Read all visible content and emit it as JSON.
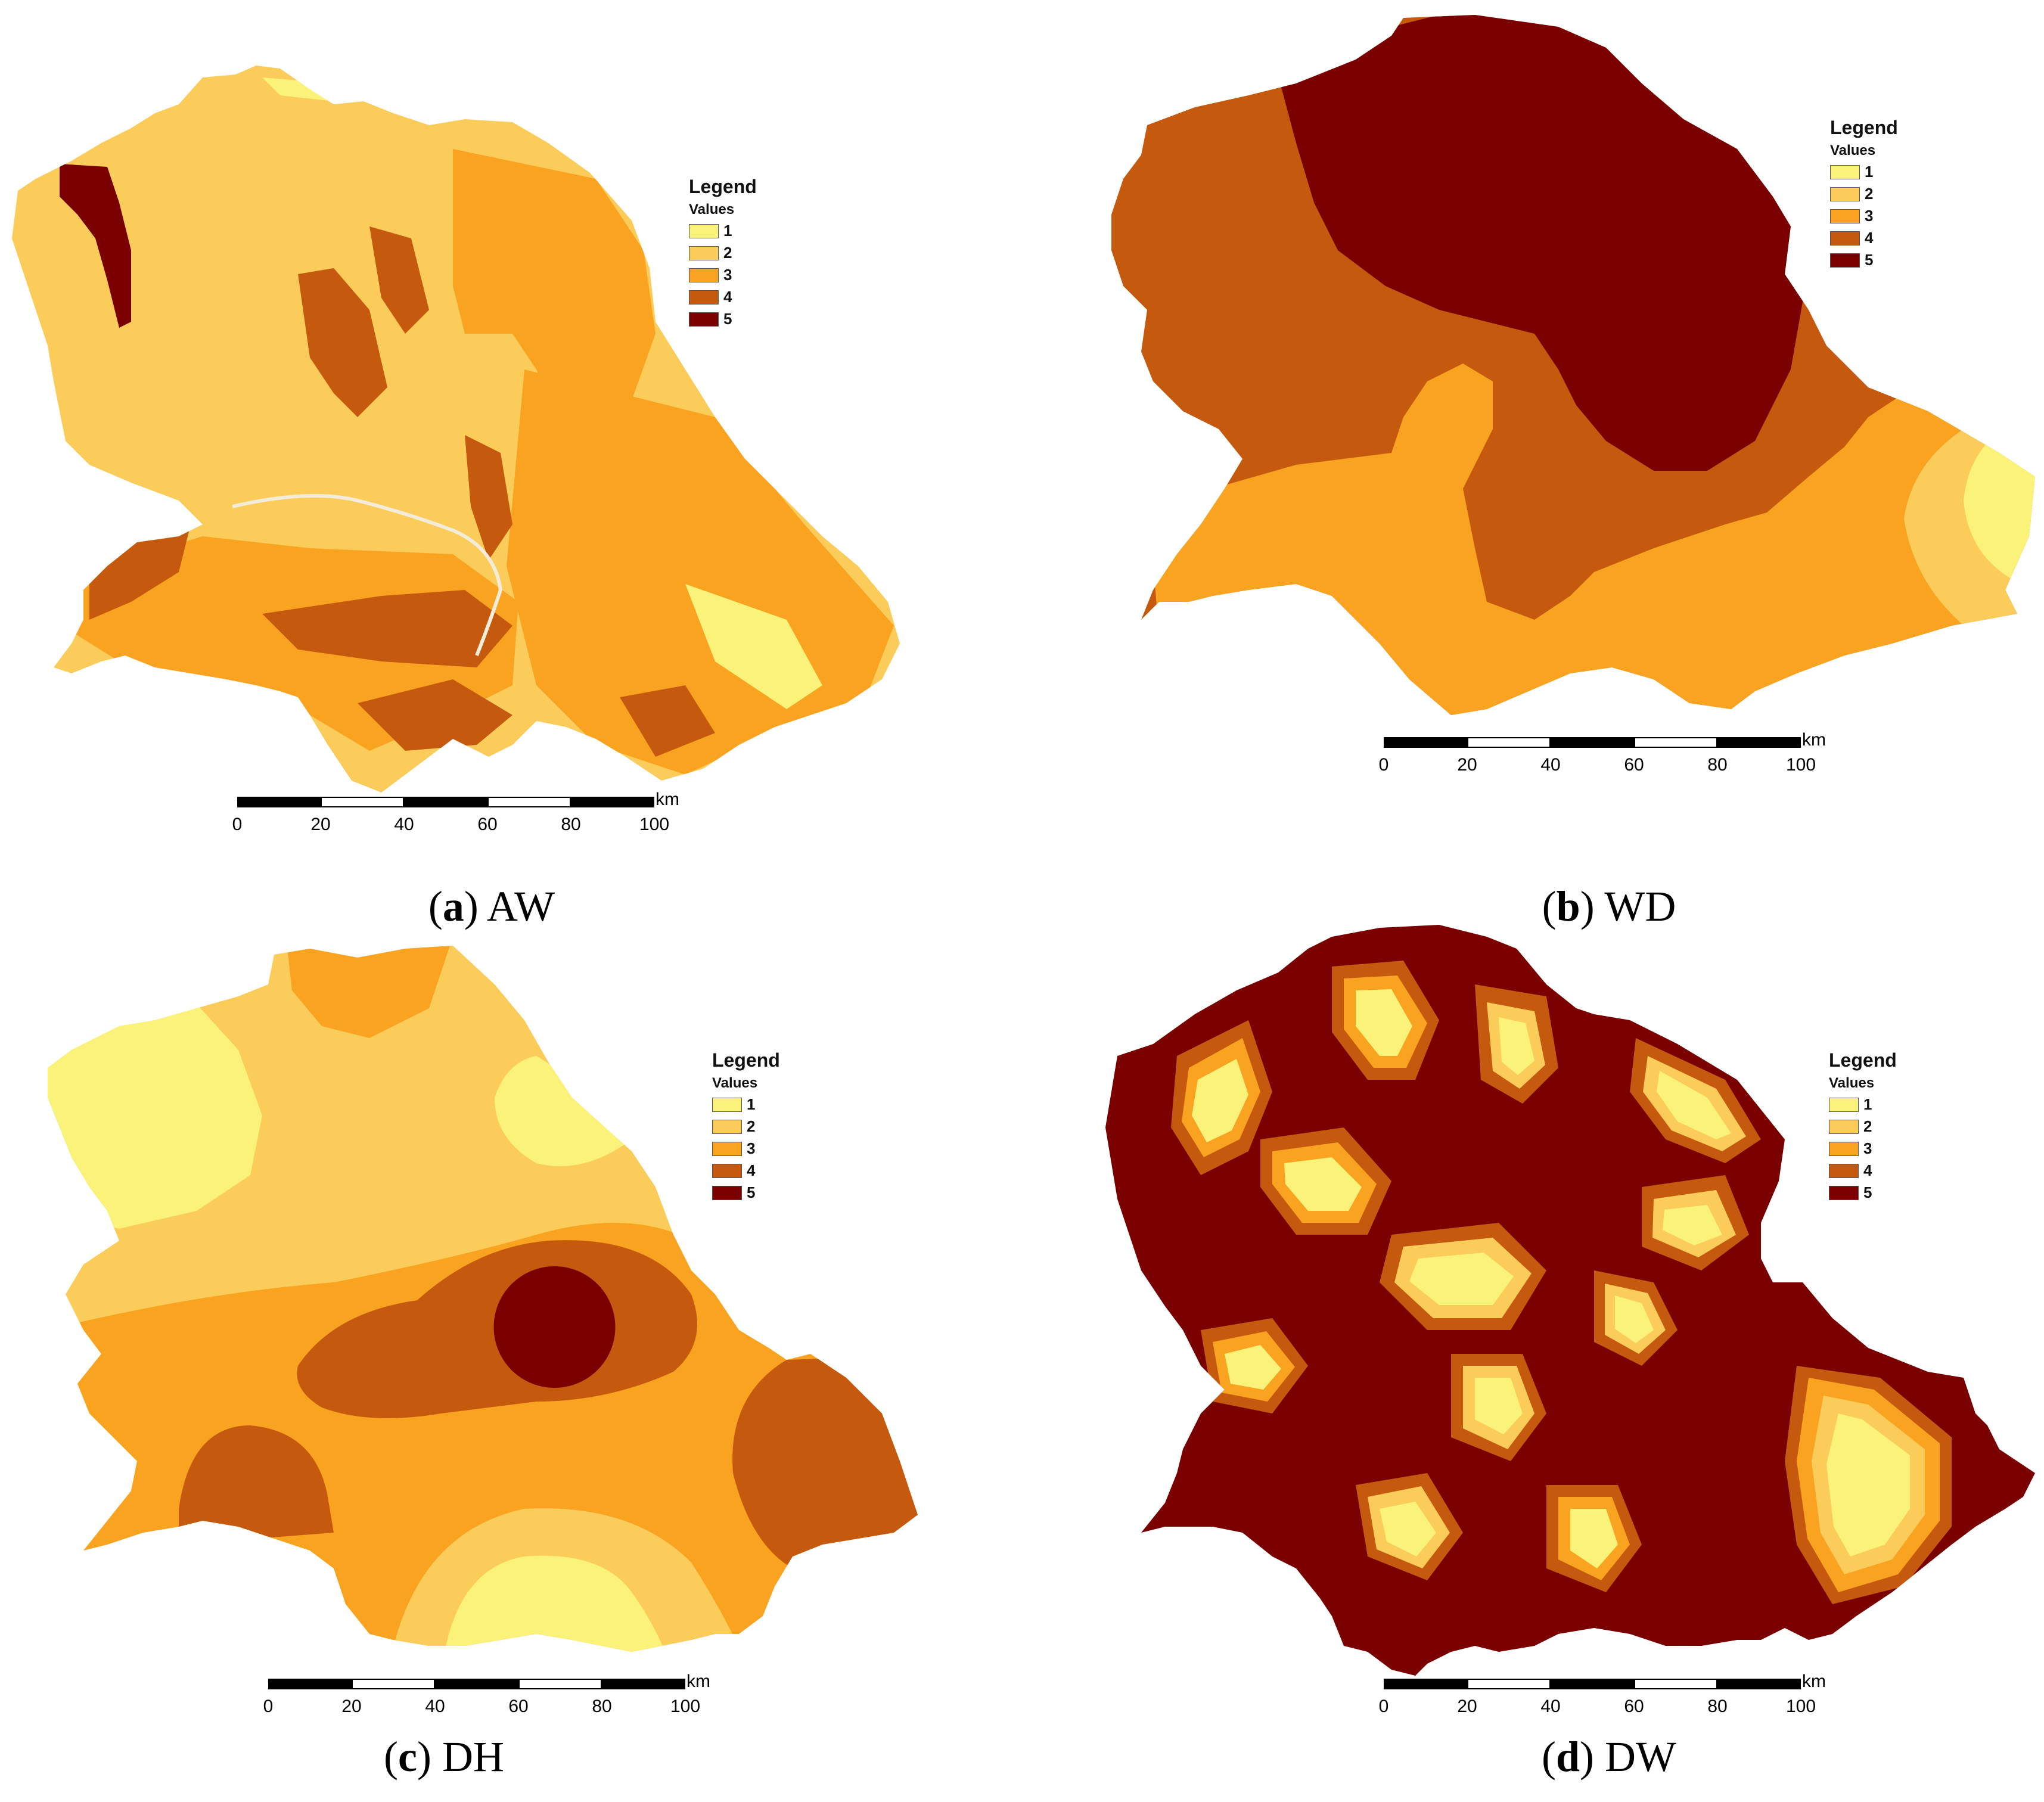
{
  "colors": {
    "class_1": "#fbf27a",
    "class_2": "#fccc5a",
    "class_3": "#f9a321",
    "class_4": "#c55a0e",
    "class_5": "#7a0000"
  },
  "legend": {
    "title": "Legend",
    "subtitle": "Values",
    "items": [
      "1",
      "2",
      "3",
      "4",
      "5"
    ]
  },
  "scalebar": {
    "ticks": [
      "0",
      "20",
      "40",
      "60",
      "80",
      "100"
    ],
    "unit": "km"
  },
  "panels": [
    {
      "letter": "a",
      "label": "AW"
    },
    {
      "letter": "b",
      "label": "WD"
    },
    {
      "letter": "c",
      "label": "DH"
    },
    {
      "letter": "d",
      "label": "DW"
    }
  ]
}
